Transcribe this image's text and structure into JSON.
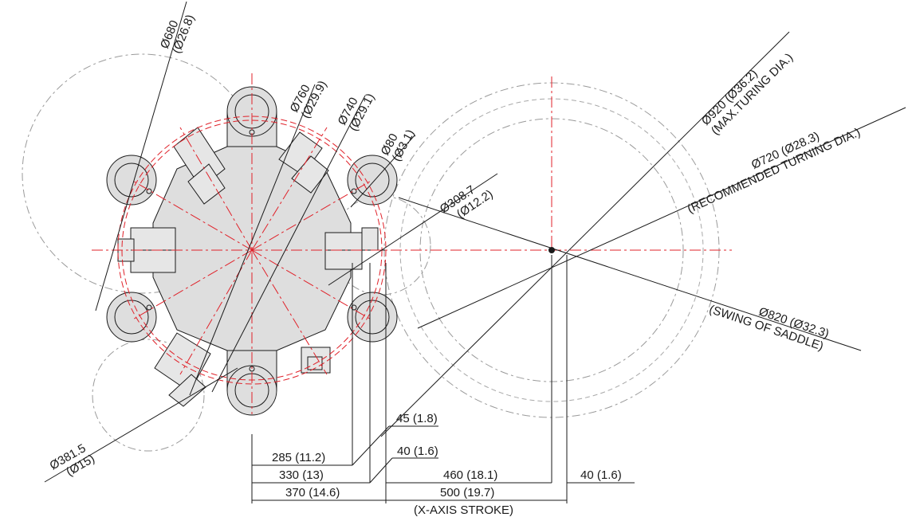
{
  "dimensions": {
    "d680": "Ø680",
    "d680_in": "(Ø26.8)",
    "d760": "Ø760",
    "d760_in": "(Ø29.9)",
    "d740": "Ø740",
    "d740_in": "(Ø29.1)",
    "d80": "Ø80",
    "d80_in": "(Ø3.1)",
    "d308": "Ø308.7",
    "d308_in": "(Ø12.2)",
    "d920": "Ø920 (Ø36.2)",
    "d920_note": "(MAX.TURING DIA.)",
    "d720": "Ø720 (Ø28.3)",
    "d720_note": "(RECOMMENDED TURNING DIA.)",
    "d820": "Ø820 (Ø32.3)",
    "d820_note": "(SWING OF SADDLE)",
    "d381": "Ø381.5",
    "d381_in": "(Ø15)"
  },
  "linear": {
    "l45": "45 (1.8)",
    "l40a": "40 (1.6)",
    "l285": "285 (11.2)",
    "l330": "330 (13)",
    "l460": "460 (18.1)",
    "l40b": "40 (1.6)",
    "l370": "370 (14.6)",
    "l500": "500 (19.7)",
    "xstroke": "(X-AXIS STROKE)"
  },
  "colors": {
    "centerline": "#e0222a",
    "body": "#dedede",
    "line": "#1a1a1a"
  }
}
